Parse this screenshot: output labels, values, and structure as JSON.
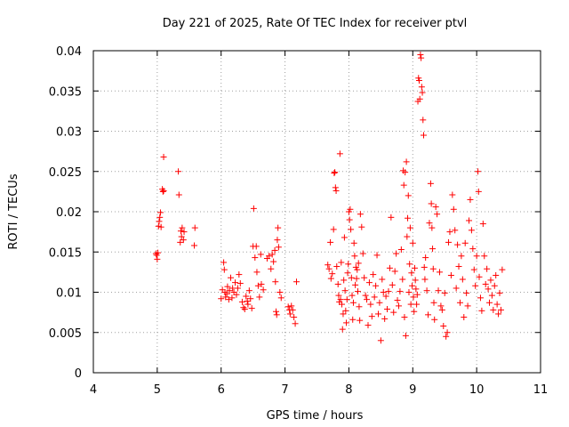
{
  "chart_data": {
    "type": "scatter",
    "title": "Day 221 of 2025, Rate Of TEC Index for receiver ptvl",
    "xlabel": "GPS time / hours",
    "ylabel": "ROTI / TECUs",
    "xlim": [
      4,
      11
    ],
    "ylim": [
      0,
      0.04
    ],
    "x_ticks": [
      "4",
      "5",
      "6",
      "7",
      "8",
      "9",
      "10",
      "11"
    ],
    "y_ticks": [
      "0",
      "0.005",
      "0.01",
      "0.015",
      "0.02",
      "0.025",
      "0.03",
      "0.035",
      "0.04"
    ],
    "grid": true,
    "marker": "+",
    "marker_color": "#ff0000",
    "series": [
      {
        "points": [
          [
            4.98,
            0.0148
          ],
          [
            4.99,
            0.0146
          ],
          [
            5.0,
            0.0141
          ],
          [
            5.01,
            0.0149
          ],
          [
            5.02,
            0.0182
          ],
          [
            5.03,
            0.0188
          ],
          [
            5.04,
            0.0193
          ],
          [
            5.05,
            0.0199
          ],
          [
            5.06,
            0.0181
          ],
          [
            5.08,
            0.0228
          ],
          [
            5.09,
            0.0225
          ],
          [
            5.1,
            0.0268
          ],
          [
            5.1,
            0.0226
          ],
          [
            5.33,
            0.025
          ],
          [
            5.34,
            0.0221
          ],
          [
            5.36,
            0.0162
          ],
          [
            5.37,
            0.0176
          ],
          [
            5.38,
            0.0169
          ],
          [
            5.39,
            0.018
          ],
          [
            5.41,
            0.0165
          ],
          [
            5.42,
            0.0175
          ],
          [
            5.58,
            0.0158
          ],
          [
            5.59,
            0.018
          ],
          [
            6.0,
            0.0092
          ],
          [
            6.02,
            0.0103
          ],
          [
            6.04,
            0.0137
          ],
          [
            6.05,
            0.0128
          ],
          [
            6.06,
            0.01
          ],
          [
            6.07,
            0.0094
          ],
          [
            6.09,
            0.0098
          ],
          [
            6.1,
            0.0107
          ],
          [
            6.12,
            0.0091
          ],
          [
            6.13,
            0.0102
          ],
          [
            6.15,
            0.0118
          ],
          [
            6.17,
            0.0093
          ],
          [
            6.18,
            0.0105
          ],
          [
            6.2,
            0.01
          ],
          [
            6.22,
            0.0112
          ],
          [
            6.24,
            0.0097
          ],
          [
            6.26,
            0.0105
          ],
          [
            6.28,
            0.0122
          ],
          [
            6.3,
            0.0111
          ],
          [
            6.33,
            0.0088
          ],
          [
            6.35,
            0.0081
          ],
          [
            6.37,
            0.0079
          ],
          [
            6.39,
            0.0095
          ],
          [
            6.41,
            0.0089
          ],
          [
            6.42,
            0.0085
          ],
          [
            6.44,
            0.0102
          ],
          [
            6.46,
            0.0092
          ],
          [
            6.48,
            0.008
          ],
          [
            6.5,
            0.0157
          ],
          [
            6.51,
            0.0204
          ],
          [
            6.53,
            0.0143
          ],
          [
            6.55,
            0.0157
          ],
          [
            6.56,
            0.0125
          ],
          [
            6.58,
            0.0108
          ],
          [
            6.6,
            0.0094
          ],
          [
            6.62,
            0.0147
          ],
          [
            6.63,
            0.011
          ],
          [
            6.66,
            0.0103
          ],
          [
            6.72,
            0.0142
          ],
          [
            6.75,
            0.0145
          ],
          [
            6.78,
            0.0129
          ],
          [
            6.8,
            0.0147
          ],
          [
            6.82,
            0.0138
          ],
          [
            6.84,
            0.0152
          ],
          [
            6.85,
            0.0113
          ],
          [
            6.86,
            0.0076
          ],
          [
            6.87,
            0.0072
          ],
          [
            6.88,
            0.0165
          ],
          [
            6.89,
            0.018
          ],
          [
            6.9,
            0.0156
          ],
          [
            6.92,
            0.01
          ],
          [
            6.94,
            0.0093
          ],
          [
            7.05,
            0.0082
          ],
          [
            7.07,
            0.0078
          ],
          [
            7.08,
            0.0073
          ],
          [
            7.1,
            0.0083
          ],
          [
            7.12,
            0.0078
          ],
          [
            7.14,
            0.0069
          ],
          [
            7.16,
            0.0061
          ],
          [
            7.18,
            0.0113
          ],
          [
            7.67,
            0.0134
          ],
          [
            7.69,
            0.0129
          ],
          [
            7.71,
            0.0162
          ],
          [
            7.72,
            0.0117
          ],
          [
            7.74,
            0.0123
          ],
          [
            7.76,
            0.0178
          ],
          [
            7.77,
            0.0248
          ],
          [
            7.78,
            0.0249
          ],
          [
            7.79,
            0.023
          ],
          [
            7.8,
            0.0226
          ],
          [
            7.81,
            0.0132
          ],
          [
            7.83,
            0.011
          ],
          [
            7.84,
            0.0096
          ],
          [
            7.85,
            0.0088
          ],
          [
            7.86,
            0.0272
          ],
          [
            7.87,
            0.0091
          ],
          [
            7.88,
            0.0137
          ],
          [
            7.89,
            0.0085
          ],
          [
            7.9,
            0.0054
          ],
          [
            7.91,
            0.0073
          ],
          [
            7.92,
            0.0115
          ],
          [
            7.93,
            0.0168
          ],
          [
            7.94,
            0.0102
          ],
          [
            7.95,
            0.0077
          ],
          [
            7.96,
            0.0062
          ],
          [
            7.97,
            0.0091
          ],
          [
            7.98,
            0.0124
          ],
          [
            7.99,
            0.0135
          ],
          [
            8.0,
            0.02
          ],
          [
            8.01,
            0.019
          ],
          [
            8.02,
            0.0203
          ],
          [
            8.03,
            0.0178
          ],
          [
            8.04,
            0.0118
          ],
          [
            8.05,
            0.0096
          ],
          [
            8.06,
            0.0066
          ],
          [
            8.07,
            0.0087
          ],
          [
            8.08,
            0.0161
          ],
          [
            8.09,
            0.0145
          ],
          [
            8.1,
            0.0109
          ],
          [
            8.11,
            0.0131
          ],
          [
            8.12,
            0.0117
          ],
          [
            8.13,
            0.0128
          ],
          [
            8.14,
            0.0101
          ],
          [
            8.15,
            0.0136
          ],
          [
            8.16,
            0.0082
          ],
          [
            8.17,
            0.0065
          ],
          [
            8.18,
            0.0197
          ],
          [
            8.2,
            0.0181
          ],
          [
            8.22,
            0.0148
          ],
          [
            8.24,
            0.0118
          ],
          [
            8.26,
            0.0096
          ],
          [
            8.28,
            0.0091
          ],
          [
            8.3,
            0.0059
          ],
          [
            8.32,
            0.0112
          ],
          [
            8.34,
            0.0085
          ],
          [
            8.36,
            0.007
          ],
          [
            8.38,
            0.0122
          ],
          [
            8.4,
            0.0094
          ],
          [
            8.42,
            0.0108
          ],
          [
            8.44,
            0.0146
          ],
          [
            8.46,
            0.0073
          ],
          [
            8.48,
            0.0087
          ],
          [
            8.5,
            0.004
          ],
          [
            8.52,
            0.0116
          ],
          [
            8.54,
            0.01
          ],
          [
            8.56,
            0.0067
          ],
          [
            8.58,
            0.0095
          ],
          [
            8.6,
            0.0079
          ],
          [
            8.62,
            0.0101
          ],
          [
            8.64,
            0.013
          ],
          [
            8.66,
            0.0193
          ],
          [
            8.68,
            0.0109
          ],
          [
            8.7,
            0.0075
          ],
          [
            8.72,
            0.0126
          ],
          [
            8.74,
            0.0148
          ],
          [
            8.76,
            0.009
          ],
          [
            8.78,
            0.0083
          ],
          [
            8.8,
            0.0101
          ],
          [
            8.82,
            0.0153
          ],
          [
            8.84,
            0.0116
          ],
          [
            8.85,
            0.0251
          ],
          [
            8.86,
            0.0233
          ],
          [
            8.87,
            0.0069
          ],
          [
            8.88,
            0.0249
          ],
          [
            8.89,
            0.0046
          ],
          [
            8.9,
            0.0262
          ],
          [
            8.91,
            0.0169
          ],
          [
            8.92,
            0.0192
          ],
          [
            8.93,
            0.022
          ],
          [
            8.94,
            0.01
          ],
          [
            8.95,
            0.0135
          ],
          [
            8.96,
            0.018
          ],
          [
            8.97,
            0.0085
          ],
          [
            8.98,
            0.0124
          ],
          [
            8.99,
            0.0108
          ],
          [
            9.0,
            0.0161
          ],
          [
            9.01,
            0.0094
          ],
          [
            9.02,
            0.0076
          ],
          [
            9.03,
            0.013
          ],
          [
            9.04,
            0.0115
          ],
          [
            9.05,
            0.0104
          ],
          [
            9.06,
            0.0085
          ],
          [
            9.07,
            0.0097
          ],
          [
            9.08,
            0.0337
          ],
          [
            9.09,
            0.0366
          ],
          [
            9.1,
            0.0363
          ],
          [
            9.11,
            0.034
          ],
          [
            9.12,
            0.0395
          ],
          [
            9.13,
            0.0391
          ],
          [
            9.14,
            0.0355
          ],
          [
            9.15,
            0.0348
          ],
          [
            9.16,
            0.0314
          ],
          [
            9.17,
            0.0295
          ],
          [
            9.18,
            0.0131
          ],
          [
            9.19,
            0.0116
          ],
          [
            9.2,
            0.0143
          ],
          [
            9.22,
            0.0102
          ],
          [
            9.24,
            0.0072
          ],
          [
            9.26,
            0.0186
          ],
          [
            9.28,
            0.0235
          ],
          [
            9.29,
            0.021
          ],
          [
            9.3,
            0.018
          ],
          [
            9.31,
            0.0154
          ],
          [
            9.32,
            0.0129
          ],
          [
            9.33,
            0.0087
          ],
          [
            9.34,
            0.0066
          ],
          [
            9.36,
            0.0206
          ],
          [
            9.38,
            0.0197
          ],
          [
            9.4,
            0.0102
          ],
          [
            9.42,
            0.0125
          ],
          [
            9.44,
            0.0083
          ],
          [
            9.46,
            0.0078
          ],
          [
            9.48,
            0.0058
          ],
          [
            9.5,
            0.0099
          ],
          [
            9.52,
            0.0045
          ],
          [
            9.54,
            0.005
          ],
          [
            9.56,
            0.0162
          ],
          [
            9.58,
            0.0175
          ],
          [
            9.6,
            0.0121
          ],
          [
            9.62,
            0.0221
          ],
          [
            9.64,
            0.0203
          ],
          [
            9.66,
            0.0177
          ],
          [
            9.68,
            0.0105
          ],
          [
            9.7,
            0.0159
          ],
          [
            9.72,
            0.0132
          ],
          [
            9.74,
            0.0087
          ],
          [
            9.76,
            0.0145
          ],
          [
            9.78,
            0.0116
          ],
          [
            9.8,
            0.0069
          ],
          [
            9.82,
            0.0161
          ],
          [
            9.84,
            0.0099
          ],
          [
            9.86,
            0.0083
          ],
          [
            9.88,
            0.0189
          ],
          [
            9.9,
            0.0215
          ],
          [
            9.92,
            0.0177
          ],
          [
            9.94,
            0.0154
          ],
          [
            9.96,
            0.0128
          ],
          [
            9.98,
            0.0108
          ],
          [
            10.0,
            0.0145
          ],
          [
            10.02,
            0.025
          ],
          [
            10.03,
            0.0225
          ],
          [
            10.04,
            0.0119
          ],
          [
            10.06,
            0.0093
          ],
          [
            10.08,
            0.0077
          ],
          [
            10.1,
            0.0185
          ],
          [
            10.12,
            0.0145
          ],
          [
            10.14,
            0.011
          ],
          [
            10.16,
            0.0129
          ],
          [
            10.18,
            0.0104
          ],
          [
            10.2,
            0.0087
          ],
          [
            10.22,
            0.0115
          ],
          [
            10.24,
            0.0096
          ],
          [
            10.26,
            0.0078
          ],
          [
            10.28,
            0.0108
          ],
          [
            10.3,
            0.0121
          ],
          [
            10.32,
            0.0085
          ],
          [
            10.34,
            0.0073
          ],
          [
            10.36,
            0.0099
          ],
          [
            10.38,
            0.0078
          ],
          [
            10.4,
            0.0128
          ]
        ]
      }
    ]
  }
}
